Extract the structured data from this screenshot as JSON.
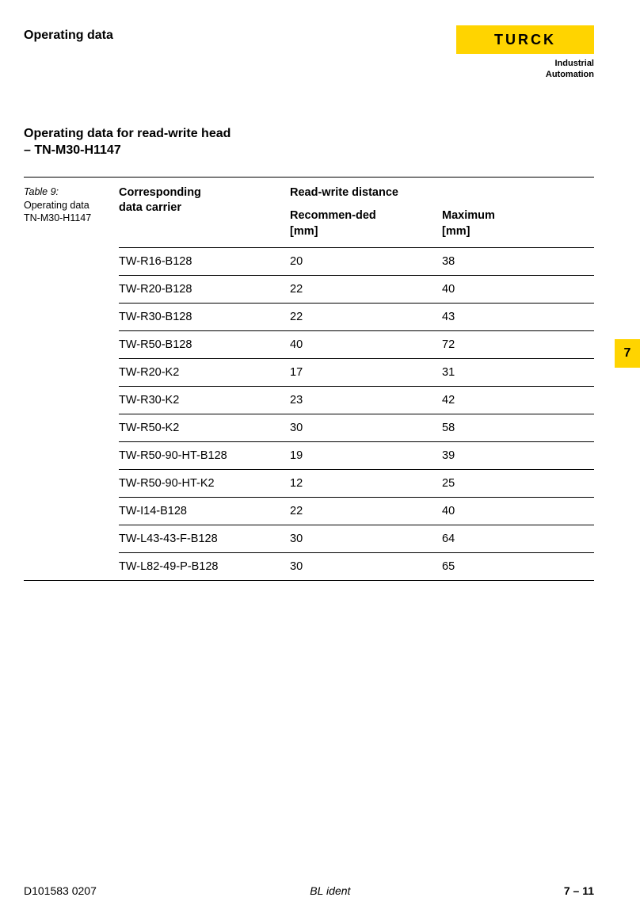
{
  "header": {
    "title": "Operating data",
    "logo_text": "TURCK",
    "logo_sub1": "Industrial",
    "logo_sub2": "Automation"
  },
  "section": {
    "title_line1": "Operating data for read-write head",
    "title_line2": "– TN-M30-H1147"
  },
  "side_caption": {
    "line1": "Table 9:",
    "line2": "Operating data",
    "line3": "TN-M30-H1147"
  },
  "table": {
    "head_col1_line1": "Corresponding",
    "head_col1_line2": "data carrier",
    "head_span": "Read-write distance",
    "head_col2_line1": "Recommen-ded",
    "head_col2_line2": "[mm]",
    "head_col3_line1": "Maximum",
    "head_col3_line2": "[mm]",
    "rows": [
      {
        "carrier": "TW-R16-B128",
        "rec": "20",
        "max": "38"
      },
      {
        "carrier": "TW-R20-B128",
        "rec": "22",
        "max": "40"
      },
      {
        "carrier": "TW-R30-B128",
        "rec": "22",
        "max": "43"
      },
      {
        "carrier": "TW-R50-B128",
        "rec": "40",
        "max": "72"
      },
      {
        "carrier": "TW-R20-K2",
        "rec": "17",
        "max": "31"
      },
      {
        "carrier": "TW-R30-K2",
        "rec": "23",
        "max": "42"
      },
      {
        "carrier": "TW-R50-K2",
        "rec": "30",
        "max": "58"
      },
      {
        "carrier": "TW-R50-90-HT-B128",
        "rec": "19",
        "max": "39"
      },
      {
        "carrier": "TW-R50-90-HT-K2",
        "rec": "12",
        "max": "25"
      },
      {
        "carrier": "TW-I14-B128",
        "rec": "22",
        "max": "40"
      },
      {
        "carrier": "TW-L43-43-F-B128",
        "rec": "30",
        "max": "64"
      },
      {
        "carrier": "TW-L82-49-P-B128",
        "rec": "30",
        "max": "65"
      }
    ]
  },
  "page_tab": "7",
  "footer": {
    "left": "D101583  0207",
    "mid": "BL ident",
    "right": "7 – 11"
  },
  "colors": {
    "accent": "#ffd400",
    "text": "#000000",
    "bg": "#ffffff"
  }
}
